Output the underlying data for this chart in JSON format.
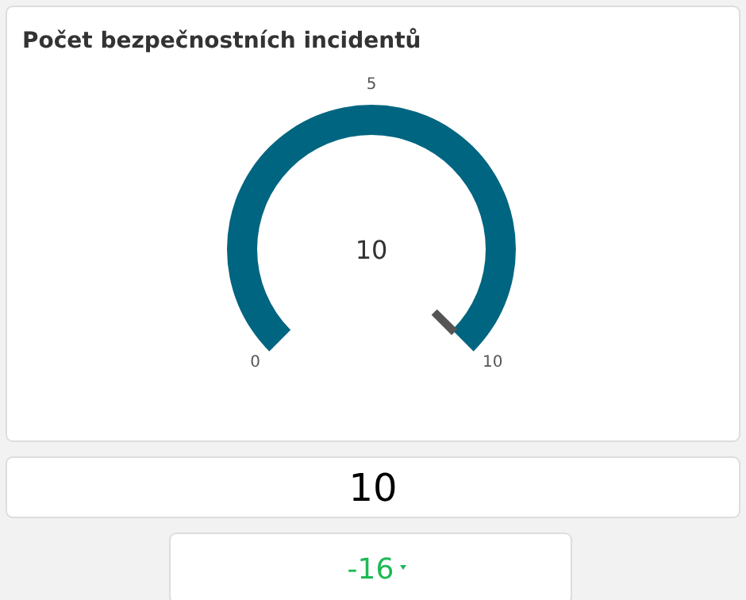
{
  "chart_data": [
    {
      "type": "other",
      "title": "Počet bezpečnostních incidentů",
      "values": [
        10
      ],
      "data_labels": true,
      "colors": [
        "#006580"
      ],
      "annotations": [
        "0",
        "5",
        "10"
      ]
    },
    {
      "type": "other",
      "annotations": [
        "10"
      ]
    },
    {
      "type": "other",
      "annotations": [
        "-16"
      ]
    }
  ]
}
